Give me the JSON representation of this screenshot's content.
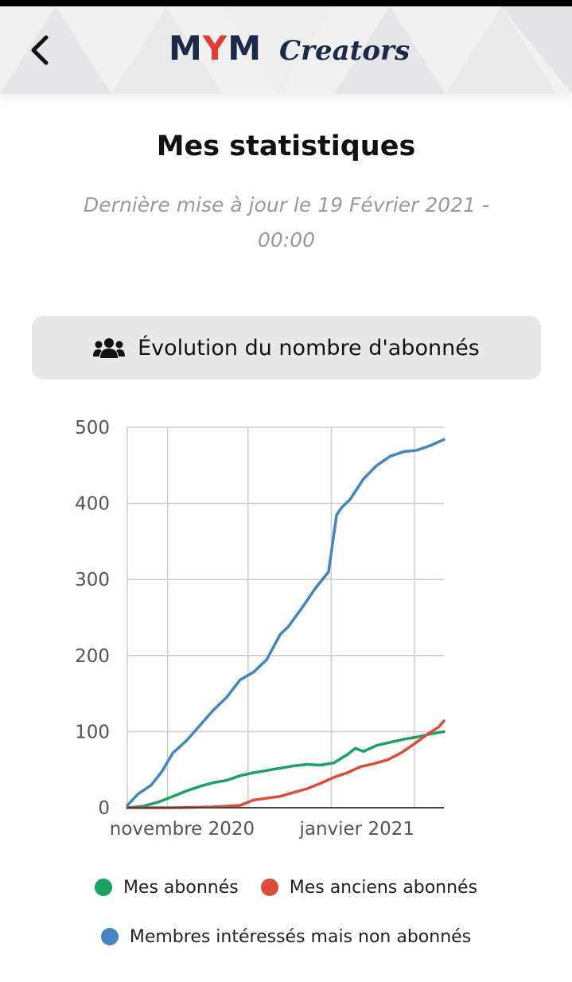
{
  "header": {
    "logo_mym_prefix": "M",
    "logo_mym_y": "Y",
    "logo_mym_suffix": "M",
    "logo_creators": "Creators",
    "back_icon": "chevron-left-icon"
  },
  "page": {
    "title": "Mes statistiques",
    "update_line1": "Dernière mise à jour le 19 Février 2021 -",
    "update_line2": "00:00"
  },
  "section": {
    "icon": "users-icon",
    "title": "Évolution du nombre d'abonnés"
  },
  "colors": {
    "green": "#1aa260",
    "red": "#dd4b39",
    "blue": "#4286bd",
    "grid": "#cccccc"
  },
  "chart_data": {
    "type": "line",
    "xlim": [
      "2020-10-24",
      "2021-02-19"
    ],
    "ylim": [
      0,
      500
    ],
    "y_ticks": [
      0,
      100,
      200,
      300,
      400,
      500
    ],
    "x_ticks": [
      {
        "date": "2020-11-01",
        "label": "novembre 2020"
      },
      {
        "date": "2021-01-01",
        "label": "janvier 2021"
      }
    ],
    "x_grid": [
      "2020-11-08",
      "2020-12-08",
      "2021-01-08",
      "2021-02-08"
    ],
    "grid": true,
    "legend_position": "bottom",
    "series": [
      {
        "name": "Mes abonnés",
        "color": "#1aa260",
        "x": [
          "2020-10-24",
          "2020-10-30",
          "2020-11-05",
          "2020-11-10",
          "2020-11-15",
          "2020-11-20",
          "2020-11-25",
          "2020-11-30",
          "2020-12-05",
          "2020-12-10",
          "2020-12-15",
          "2020-12-20",
          "2020-12-25",
          "2020-12-30",
          "2021-01-04",
          "2021-01-09",
          "2021-01-14",
          "2021-01-17",
          "2021-01-20",
          "2021-01-25",
          "2021-01-30",
          "2021-02-04",
          "2021-02-09",
          "2021-02-14",
          "2021-02-19"
        ],
        "values": [
          0,
          2,
          8,
          15,
          22,
          28,
          33,
          36,
          42,
          46,
          49,
          52,
          55,
          57,
          56,
          59,
          70,
          78,
          74,
          82,
          86,
          90,
          93,
          97,
          100
        ]
      },
      {
        "name": "Mes anciens abonnés",
        "color": "#dd4b39",
        "x": [
          "2020-10-24",
          "2020-11-10",
          "2020-11-25",
          "2020-12-05",
          "2020-12-10",
          "2020-12-20",
          "2020-12-30",
          "2021-01-04",
          "2021-01-09",
          "2021-01-14",
          "2021-01-19",
          "2021-01-24",
          "2021-01-29",
          "2021-02-03",
          "2021-02-08",
          "2021-02-13",
          "2021-02-17",
          "2021-02-19"
        ],
        "values": [
          0,
          0,
          1,
          3,
          10,
          15,
          25,
          32,
          40,
          46,
          54,
          58,
          63,
          72,
          84,
          97,
          106,
          114
        ]
      },
      {
        "name": "Membres intéressés mais non abonnés",
        "color": "#4286bd",
        "x": [
          "2020-10-24",
          "2020-10-28",
          "2020-11-02",
          "2020-11-06",
          "2020-11-10",
          "2020-11-15",
          "2020-11-20",
          "2020-11-25",
          "2020-11-30",
          "2020-12-05",
          "2020-12-10",
          "2020-12-15",
          "2020-12-20",
          "2020-12-23",
          "2020-12-28",
          "2021-01-02",
          "2021-01-07",
          "2021-01-10",
          "2021-01-12",
          "2021-01-15",
          "2021-01-20",
          "2021-01-25",
          "2021-01-30",
          "2021-02-04",
          "2021-02-09",
          "2021-02-14",
          "2021-02-19"
        ],
        "values": [
          3,
          18,
          30,
          48,
          72,
          88,
          108,
          128,
          145,
          168,
          178,
          195,
          228,
          238,
          262,
          288,
          310,
          385,
          395,
          405,
          432,
          450,
          462,
          468,
          470,
          476,
          484
        ]
      }
    ]
  }
}
